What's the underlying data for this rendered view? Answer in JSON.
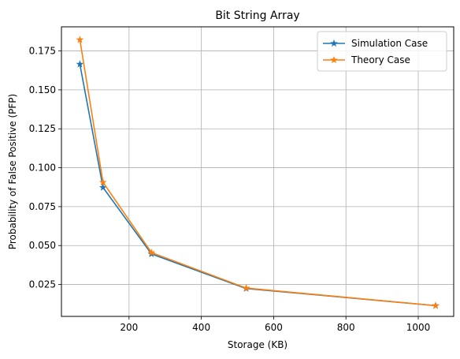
{
  "chart_data": {
    "type": "line",
    "title": "Bit String Array",
    "xlabel": "Storage (KB)",
    "ylabel": "Probability of False Positive (PFP)",
    "xlim": [
      13,
      1098
    ],
    "ylim": [
      0.0045,
      0.1905
    ],
    "xticks": [
      200,
      400,
      600,
      800,
      1000
    ],
    "xtick_labels": [
      "200",
      "400",
      "600",
      "800",
      "1000"
    ],
    "yticks": [
      0.025,
      0.05,
      0.075,
      0.1,
      0.125,
      0.15,
      0.175
    ],
    "ytick_labels": [
      "0.025",
      "0.050",
      "0.075",
      "0.100",
      "0.125",
      "0.150",
      "0.175"
    ],
    "grid": true,
    "legend_position": "top-right",
    "series": [
      {
        "name": "Simulation Case",
        "color": "#1f77b4",
        "marker": "star",
        "x": [
          64,
          128,
          262,
          524,
          1048
        ],
        "y": [
          0.1665,
          0.0873,
          0.0446,
          0.0224,
          0.0114
        ]
      },
      {
        "name": "Theory Case",
        "color": "#ff7f0e",
        "marker": "star",
        "x": [
          64,
          128,
          262,
          524,
          1048
        ],
        "y": [
          0.1822,
          0.0906,
          0.0455,
          0.0227,
          0.0114
        ]
      }
    ]
  }
}
